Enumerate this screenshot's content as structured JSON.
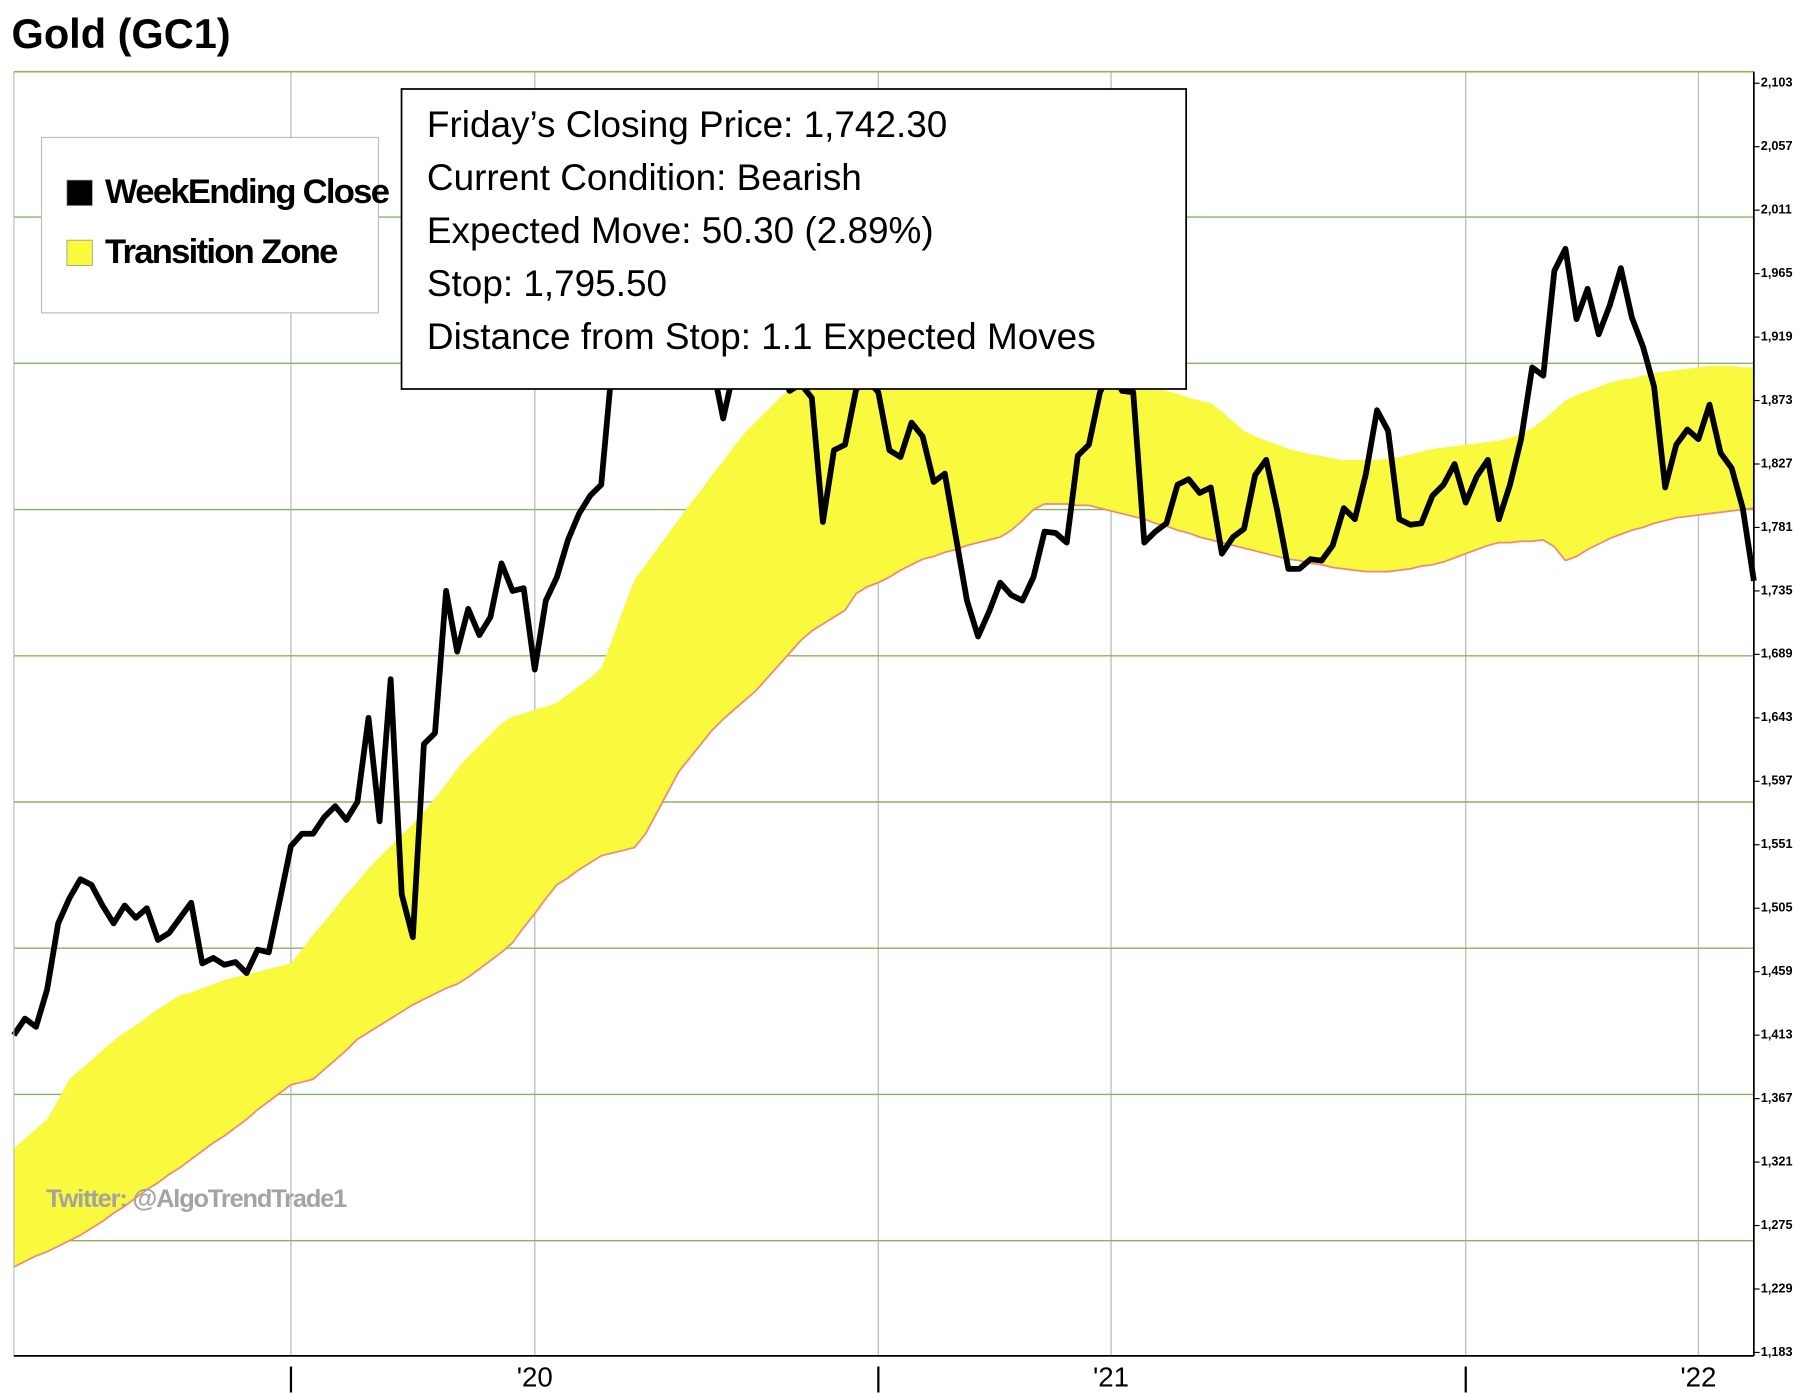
{
  "chart_data": {
    "type": "line",
    "title": "Gold (GC1)",
    "watermark": "Twitter: @AlgoTrendTrade1",
    "annotations": [
      "Friday’s Closing Price: 1,742.30",
      "Current Condition: Bearish",
      "Expected Move: 50.30 (2.89%)",
      "Stop: 1,795.50",
      "Distance from Stop: 1.1 Expected Moves"
    ],
    "legend": "upper left",
    "categories": [
      null,
      null,
      null,
      null,
      null,
      null,
      null,
      null,
      null,
      null,
      null,
      null,
      null,
      null,
      null,
      null,
      null,
      null,
      null,
      null,
      null,
      null,
      null,
      null,
      null,
      "|",
      null,
      null,
      null,
      null,
      null,
      null,
      null,
      null,
      null,
      null,
      null,
      null,
      null,
      null,
      null,
      null,
      null,
      null,
      null,
      null,
      null,
      "'20",
      null,
      null,
      null,
      null,
      null,
      null,
      null,
      null,
      null,
      null,
      null,
      null,
      null,
      null,
      null,
      null,
      null,
      null,
      null,
      null,
      null,
      null,
      null,
      null,
      null,
      null,
      null,
      null,
      null,
      null,
      "|",
      null,
      null,
      null,
      null,
      null,
      null,
      null,
      null,
      null,
      null,
      null,
      null,
      null,
      null,
      null,
      null,
      null,
      null,
      null,
      null,
      "'21",
      null,
      null,
      null,
      null,
      null,
      null,
      null,
      null,
      null,
      null,
      null,
      null,
      null,
      null,
      null,
      null,
      null,
      null,
      null,
      null,
      null,
      null,
      null,
      null,
      null,
      null,
      null,
      null,
      null,
      null,
      null,
      "|",
      null,
      null,
      null,
      null,
      null,
      null,
      null,
      null,
      null,
      null,
      null,
      null,
      null,
      null,
      null,
      null,
      null,
      null,
      null,
      null,
      "'22",
      null,
      null,
      null,
      null,
      null
    ],
    "series": [
      {
        "name": "WeekEnding Close",
        "color": "#000000",
        "values": [
          1413,
          1425,
          1419,
          1446,
          1494,
          1512,
          1526,
          1522,
          1507,
          1494,
          1507,
          1498,
          1505,
          1482,
          1487,
          1498,
          1509,
          1465,
          1469,
          1464,
          1466,
          1458,
          1475,
          1473,
          1511,
          1550,
          1559,
          1559,
          1571,
          1579,
          1569,
          1582,
          1643,
          1568,
          1671,
          1515,
          1484,
          1624,
          1632,
          1735,
          1691,
          1722,
          1703,
          1716,
          1755,
          1735,
          1737,
          1678,
          1728,
          1745,
          1772,
          1791,
          1804,
          1812,
          1900,
          1960,
          1990,
          2025,
          2065,
          2030,
          1965,
          1970,
          1945,
          1900,
          1860,
          1896,
          1910,
          1905,
          1930,
          1895,
          1880,
          1885,
          1875,
          1785,
          1837,
          1841,
          1881,
          1888,
          1879,
          1837,
          1832,
          1857,
          1847,
          1814,
          1820,
          1774,
          1728,
          1702,
          1720,
          1741,
          1732,
          1728,
          1745,
          1778,
          1777,
          1770,
          1833,
          1841,
          1879,
          1895,
          1880,
          1879,
          1770,
          1778,
          1784,
          1812,
          1816,
          1806,
          1810,
          1762,
          1774,
          1780,
          1819,
          1830,
          1793,
          1751,
          1751,
          1758,
          1757,
          1768,
          1795,
          1787,
          1820,
          1866,
          1851,
          1787,
          1783,
          1784,
          1804,
          1812,
          1827,
          1799,
          1818,
          1830,
          1787,
          1812,
          1845,
          1897,
          1891,
          1967,
          1983,
          1932,
          1954,
          1921,
          1942,
          1969,
          1933,
          1912,
          1883,
          1810,
          1841,
          1852,
          1845,
          1870,
          1835,
          1824,
          1795,
          1742.3
        ]
      },
      {
        "name": "Transition Zone",
        "color": "#f9f93e",
        "edge_color": "#ee8a72",
        "upper": [
          1331,
          1338,
          1345,
          1352,
          1366,
          1381,
          1388,
          1395,
          1402,
          1409,
          1415,
          1420,
          1426,
          1432,
          1437,
          1442,
          1444,
          1447,
          1450,
          1453,
          1455,
          1457,
          1459,
          1461,
          1463,
          1465,
          1475,
          1486,
          1495,
          1505,
          1515,
          1524,
          1534,
          1542,
          1550,
          1558,
          1566,
          1575,
          1585,
          1595,
          1606,
          1615,
          1623,
          1631,
          1639,
          1644,
          1646,
          1649,
          1651,
          1654,
          1660,
          1666,
          1672,
          1679,
          1700,
          1722,
          1743,
          1754,
          1765,
          1776,
          1787,
          1798,
          1808,
          1819,
          1829,
          1840,
          1850,
          1858,
          1866,
          1874,
          1881,
          1885,
          1889,
          1893,
          1897,
          1899,
          1901,
          1902,
          1904,
          1905,
          1906,
          1907,
          1908,
          1907,
          1906,
          1905,
          1905,
          1904,
          1902,
          1901,
          1899,
          1897,
          1896,
          1894,
          1893,
          1891,
          1889,
          1888,
          1887,
          1886,
          1885,
          1884,
          1883,
          1882,
          1880,
          1878,
          1875,
          1873,
          1871,
          1865,
          1858,
          1851,
          1847,
          1844,
          1841,
          1838,
          1836,
          1834,
          1833,
          1831,
          1830,
          1830,
          1830,
          1830,
          1831,
          1832,
          1834,
          1836,
          1838,
          1839,
          1840,
          1841,
          1842,
          1843,
          1844,
          1846,
          1849,
          1853,
          1859,
          1866,
          1873,
          1877,
          1880,
          1883,
          1886,
          1888,
          1889,
          1891,
          1893,
          1894,
          1895,
          1896,
          1897,
          1898,
          1898,
          1898,
          1897,
          1897
        ],
        "lower": [
          1245,
          1249,
          1253,
          1256,
          1260,
          1264,
          1268,
          1273,
          1278,
          1284,
          1289,
          1295,
          1301,
          1306,
          1312,
          1317,
          1323,
          1329,
          1335,
          1340,
          1346,
          1352,
          1359,
          1365,
          1371,
          1377,
          1379,
          1381,
          1388,
          1395,
          1402,
          1410,
          1415,
          1420,
          1425,
          1430,
          1435,
          1439,
          1443,
          1447,
          1450,
          1455,
          1461,
          1467,
          1473,
          1480,
          1491,
          1501,
          1512,
          1522,
          1527,
          1533,
          1538,
          1543,
          1545,
          1547,
          1549,
          1559,
          1574,
          1589,
          1604,
          1614,
          1624,
          1634,
          1642,
          1649,
          1656,
          1663,
          1672,
          1681,
          1690,
          1699,
          1706,
          1711,
          1716,
          1721,
          1733,
          1738,
          1741,
          1745,
          1750,
          1754,
          1758,
          1760,
          1763,
          1765,
          1768,
          1770,
          1772,
          1774,
          1779,
          1786,
          1794,
          1798,
          1798,
          1798,
          1797,
          1797,
          1795,
          1793,
          1791,
          1789,
          1787,
          1784,
          1782,
          1779,
          1777,
          1774,
          1772,
          1770,
          1768,
          1766,
          1764,
          1762,
          1760,
          1758,
          1757,
          1755,
          1754,
          1752,
          1751,
          1750,
          1749,
          1749,
          1749,
          1750,
          1751,
          1753,
          1754,
          1756,
          1759,
          1762,
          1765,
          1768,
          1770,
          1770,
          1771,
          1771,
          1772,
          1767,
          1757,
          1760,
          1765,
          1769,
          1773,
          1776,
          1779,
          1781,
          1784,
          1786,
          1788,
          1789,
          1790,
          1791,
          1792,
          1793,
          1794,
          1795
        ]
      }
    ],
    "ylim": [
      1183,
      2103
    ],
    "yticks": [
      {
        "value": 2103,
        "label": "2,103"
      },
      {
        "value": 2057,
        "label": "2,057"
      },
      {
        "value": 2011,
        "label": "2,011"
      },
      {
        "value": 1965,
        "label": "1,965"
      },
      {
        "value": 1919,
        "label": "1,919"
      },
      {
        "value": 1873,
        "label": "1,873"
      },
      {
        "value": 1827,
        "label": "1,827"
      },
      {
        "value": 1781,
        "label": "1,781"
      },
      {
        "value": 1735,
        "label": "1,735"
      },
      {
        "value": 1689,
        "label": "1,689"
      },
      {
        "value": 1643,
        "label": "1,643"
      },
      {
        "value": 1597,
        "label": "1,597"
      },
      {
        "value": 1551,
        "label": "1,551"
      },
      {
        "value": 1505,
        "label": "1,505"
      },
      {
        "value": 1459,
        "label": "1,459"
      },
      {
        "value": 1413,
        "label": "1,413"
      },
      {
        "value": 1367,
        "label": "1,367"
      },
      {
        "value": 1321,
        "label": "1,321"
      },
      {
        "value": 1275,
        "label": "1,275"
      },
      {
        "value": 1229,
        "label": "1,229"
      },
      {
        "value": 1183,
        "label": "1,183"
      }
    ],
    "grid": true,
    "grid_color": "#86b55e",
    "ygrid": [
      2006,
      1900,
      1794,
      1688,
      1582,
      1476,
      1370,
      1264
    ]
  }
}
